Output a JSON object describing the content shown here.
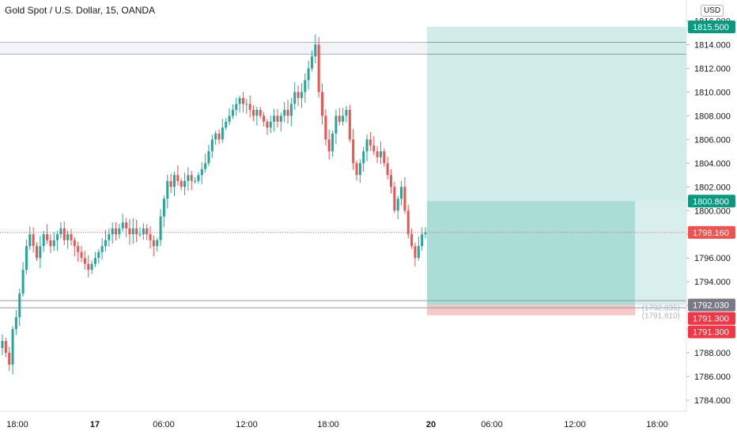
{
  "header": {
    "title": "Gold Spot / U.S. Dollar, 15, OANDA",
    "currency": "USD"
  },
  "price_labels": {
    "take_profit": "1815.500",
    "entry": "1800.800",
    "last": "1798.160",
    "level_a": "1792.030",
    "level_b": "1792.030",
    "stop_a": "1791.300",
    "stop_b": "1791.300",
    "ghost_a": "(1792.035)",
    "ghost_b": "(1791.810)"
  },
  "colors": {
    "up": "#26a69a",
    "down": "#ef5350",
    "profit_zone": "#b2dfdb",
    "profit_zone_dark": "#7fccbf",
    "loss_zone": "#f8c1c1",
    "tp_label": "#089981",
    "last_label": "#ef5350",
    "level_label": "#787b86",
    "stop_label": "#f23645"
  },
  "chart_data": {
    "type": "candlestick",
    "symbol": "Gold Spot / U.S. Dollar",
    "interval": "15",
    "source": "OANDA",
    "ylim": [
      1783,
      1817
    ],
    "y_ticks": [
      "1784.000",
      "1786.000",
      "1788.000",
      "1790.000",
      "1792.000",
      "1794.000",
      "1796.000",
      "1798.000",
      "1800.000",
      "1802.000",
      "1804.000",
      "1806.000",
      "1808.000",
      "1810.000",
      "1812.000",
      "1814.000",
      "1816.000"
    ],
    "x_ticks": [
      "18:00",
      "17",
      "06:00",
      "12:00",
      "18:00",
      "20",
      "06:00",
      "12:00",
      "18:00"
    ],
    "horizontal_lines": [
      1815.5,
      1814.2,
      1813.2,
      1792.03,
      1791.8,
      1798.16
    ],
    "position": {
      "take_profit": 1815.5,
      "entry": 1800.8,
      "stop": 1791.3,
      "current": 1798.16
    },
    "closes": [
      1789,
      1788,
      1787,
      1790,
      1791,
      1793,
      1795,
      1797,
      1798,
      1797,
      1796,
      1797,
      1798,
      1797.5,
      1797,
      1797.5,
      1798,
      1798.5,
      1797.5,
      1798,
      1797.5,
      1797,
      1796.5,
      1796,
      1795.5,
      1795,
      1795.5,
      1796,
      1796.5,
      1797,
      1797.5,
      1798,
      1798.5,
      1798,
      1798.5,
      1799,
      1798.5,
      1798,
      1798.5,
      1798,
      1798,
      1798.5,
      1798,
      1797.5,
      1797,
      1797.5,
      1799.5,
      1801,
      1802.5,
      1802,
      1803,
      1802.5,
      1802,
      1802.5,
      1803,
      1802.5,
      1802.5,
      1803,
      1803.5,
      1804,
      1805,
      1806,
      1806.5,
      1806,
      1807,
      1807.5,
      1808,
      1808.5,
      1809,
      1809.5,
      1809,
      1809,
      1808.5,
      1808,
      1808.5,
      1808,
      1807.5,
      1807,
      1807.5,
      1808,
      1807.5,
      1808,
      1808.5,
      1808,
      1809,
      1810,
      1809.5,
      1810,
      1811,
      1812,
      1813,
      1814,
      1810,
      1808,
      1806,
      1805,
      1806.5,
      1808,
      1807.5,
      1808,
      1808.5,
      1806,
      1804,
      1803,
      1804,
      1805,
      1806,
      1805.5,
      1805,
      1804.5,
      1805,
      1804,
      1803,
      1802,
      1800,
      1801,
      1802,
      1800,
      1798,
      1797,
      1796,
      1797,
      1798,
      1798.16
    ]
  }
}
